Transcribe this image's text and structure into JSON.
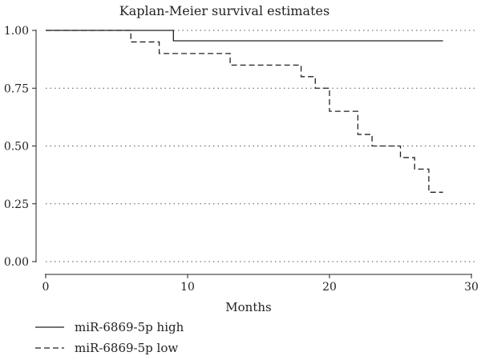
{
  "chart_data": {
    "type": "line",
    "chart_kind": "kaplan-meier step curve",
    "title": "Kaplan-Meier survival estimates",
    "xlabel": "Months",
    "ylabel": "",
    "xlim": [
      0,
      30
    ],
    "ylim": [
      0,
      1
    ],
    "xticks": [
      0,
      10,
      20,
      30
    ],
    "yticks": [
      0.0,
      0.25,
      0.5,
      0.75,
      1.0
    ],
    "xtick_labels": [
      "0",
      "10",
      "20",
      "30"
    ],
    "ytick_labels": [
      "0.00",
      "0.25",
      "0.50",
      "0.75",
      "1.00"
    ],
    "grid": "horizontal dotted",
    "legend_placement": "bottom",
    "series": [
      {
        "name": "miR-6869-5p high",
        "line_style": "solid",
        "color": "#222222",
        "steps": [
          [
            0,
            1.0
          ],
          [
            9,
            0.955
          ],
          [
            28,
            0.955
          ]
        ]
      },
      {
        "name": "miR-6869-5p low",
        "line_style": "dashed",
        "color": "#222222",
        "steps": [
          [
            0,
            1.0
          ],
          [
            6,
            0.95
          ],
          [
            8,
            0.9
          ],
          [
            13,
            0.85
          ],
          [
            18,
            0.8
          ],
          [
            19,
            0.75
          ],
          [
            20,
            0.65
          ],
          [
            22,
            0.55
          ],
          [
            23,
            0.5
          ],
          [
            25,
            0.45
          ],
          [
            26,
            0.4
          ],
          [
            27,
            0.3
          ],
          [
            28,
            0.3
          ]
        ]
      }
    ]
  }
}
